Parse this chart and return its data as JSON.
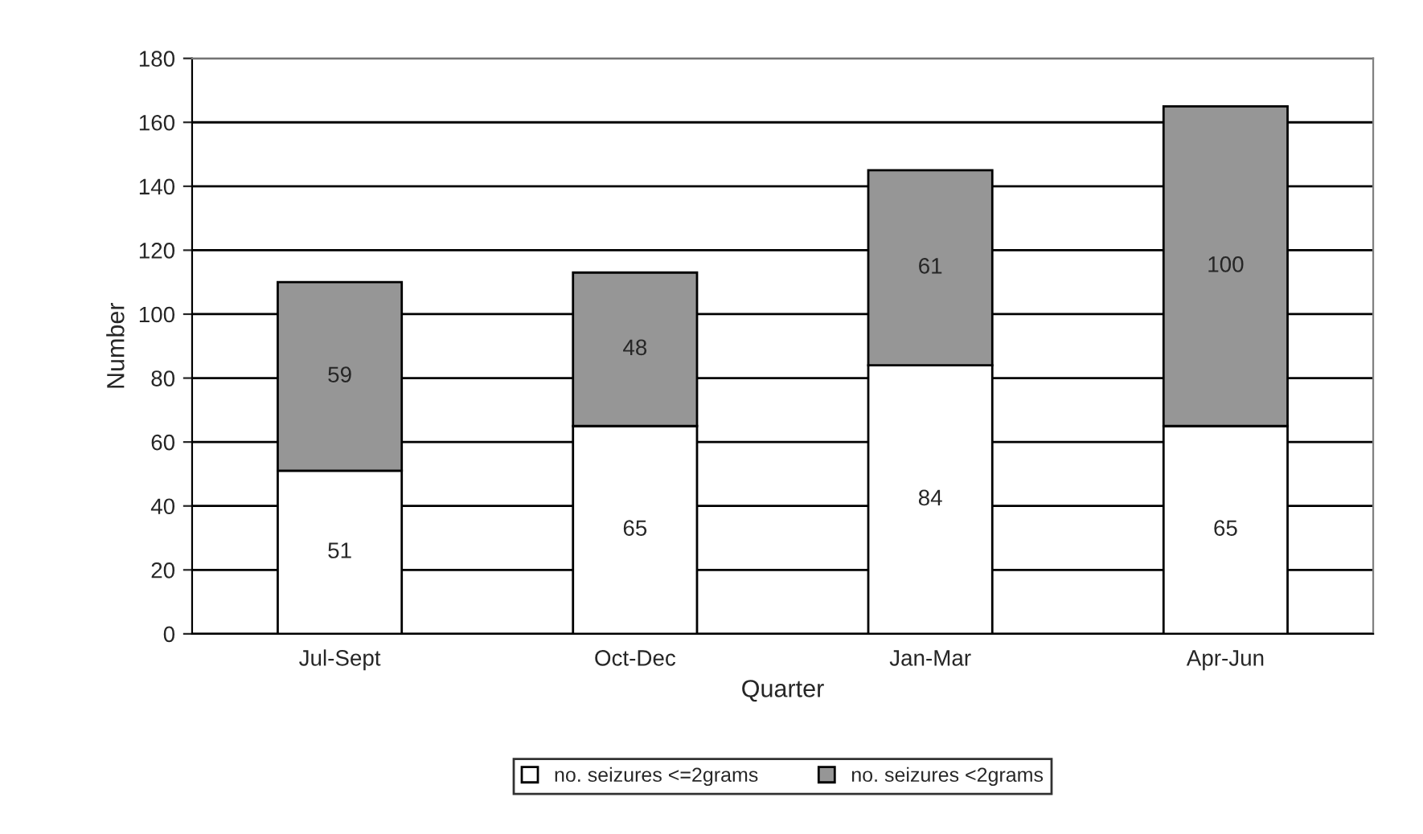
{
  "chart_data": {
    "type": "bar",
    "stacked": true,
    "xlabel": "Quarter",
    "ylabel": "Number",
    "categories": [
      "Jul-Sept",
      "Oct-Dec",
      "Jan-Mar",
      "Apr-Jun"
    ],
    "series": [
      {
        "name": "no. seizures <=2grams",
        "color": "#ffffff",
        "values": [
          51,
          65,
          84,
          65
        ]
      },
      {
        "name": "no. seizures <2grams",
        "color": "#969696",
        "values": [
          59,
          48,
          61,
          100
        ]
      }
    ],
    "ylim": [
      0,
      180
    ],
    "yticks": [
      0,
      20,
      40,
      60,
      80,
      100,
      120,
      140,
      160,
      180
    ],
    "grid": "y",
    "legend": "bottom",
    "data_labels": true
  }
}
